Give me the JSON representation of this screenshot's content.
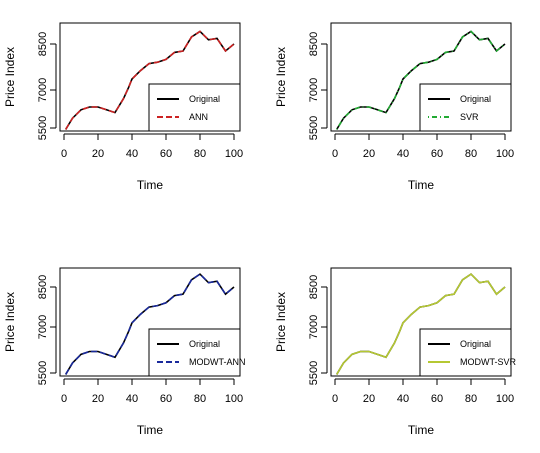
{
  "chart_data": [
    {
      "type": "line",
      "xlabel": "Time",
      "ylabel": "Price Index",
      "xlim": [
        0,
        100
      ],
      "ylim": [
        5500,
        8500
      ],
      "xticks": [
        "0",
        "20",
        "40",
        "60",
        "80",
        "100"
      ],
      "yticks": [
        "5500",
        "7000",
        "8500"
      ],
      "legend_position": "bottom-right",
      "grid": false,
      "series": [
        {
          "name": "Original",
          "color": "#000000",
          "style": "solid"
        },
        {
          "name": "ANN",
          "color": "#cc2222",
          "style": "dashed"
        }
      ],
      "x": [
        1,
        5,
        10,
        15,
        20,
        25,
        30,
        35,
        38,
        40,
        45,
        50,
        55,
        60,
        65,
        70,
        75,
        80,
        85,
        90,
        95,
        100
      ],
      "values": [
        5450,
        5850,
        6150,
        6250,
        6250,
        6150,
        6050,
        6550,
        6950,
        7250,
        7550,
        7800,
        7850,
        7950,
        8200,
        8250,
        8750,
        8950,
        8650,
        8700,
        8250,
        8500
      ]
    },
    {
      "type": "line",
      "xlabel": "Time",
      "ylabel": "Price Index",
      "xlim": [
        0,
        100
      ],
      "ylim": [
        5500,
        8500
      ],
      "xticks": [
        "0",
        "20",
        "40",
        "60",
        "80",
        "100"
      ],
      "yticks": [
        "5500",
        "7000",
        "8500"
      ],
      "legend_position": "bottom-right",
      "grid": false,
      "series": [
        {
          "name": "Original",
          "color": "#000000",
          "style": "solid"
        },
        {
          "name": "SVR",
          "color": "#22aa33",
          "style": "dotdash"
        }
      ],
      "x": [
        1,
        5,
        10,
        15,
        20,
        25,
        30,
        35,
        38,
        40,
        45,
        50,
        55,
        60,
        65,
        70,
        75,
        80,
        85,
        90,
        95,
        100
      ],
      "values": [
        5450,
        5850,
        6150,
        6250,
        6250,
        6150,
        6050,
        6550,
        6950,
        7250,
        7550,
        7800,
        7850,
        7950,
        8200,
        8250,
        8750,
        8950,
        8650,
        8700,
        8250,
        8500
      ]
    },
    {
      "type": "line",
      "xlabel": "Time",
      "ylabel": "Price Index",
      "xlim": [
        0,
        100
      ],
      "ylim": [
        5500,
        8500
      ],
      "xticks": [
        "0",
        "20",
        "40",
        "60",
        "80",
        "100"
      ],
      "yticks": [
        "5500",
        "7000",
        "8500"
      ],
      "legend_position": "bottom-right",
      "grid": false,
      "series": [
        {
          "name": "Original",
          "color": "#000000",
          "style": "solid"
        },
        {
          "name": "MODWT-ANN",
          "color": "#1a2a9c",
          "style": "dashed"
        }
      ],
      "x": [
        1,
        5,
        10,
        15,
        20,
        25,
        30,
        35,
        38,
        40,
        45,
        50,
        55,
        60,
        65,
        70,
        75,
        80,
        85,
        90,
        95,
        100
      ],
      "values": [
        5450,
        5850,
        6150,
        6250,
        6250,
        6150,
        6050,
        6550,
        6950,
        7250,
        7550,
        7800,
        7850,
        7950,
        8200,
        8250,
        8750,
        8950,
        8650,
        8700,
        8250,
        8500
      ]
    },
    {
      "type": "line",
      "xlabel": "Time",
      "ylabel": "Price Index",
      "xlim": [
        0,
        100
      ],
      "ylim": [
        5500,
        8500
      ],
      "xticks": [
        "0",
        "20",
        "40",
        "60",
        "80",
        "100"
      ],
      "yticks": [
        "5500",
        "7000",
        "8500"
      ],
      "legend_position": "bottom-right",
      "grid": false,
      "series": [
        {
          "name": "Original",
          "color": "#000000",
          "style": "solid"
        },
        {
          "name": "MODWT-SVR",
          "color": "#b5c832",
          "style": "solid"
        }
      ],
      "x": [
        1,
        5,
        10,
        15,
        20,
        25,
        30,
        35,
        38,
        40,
        45,
        50,
        55,
        60,
        65,
        70,
        75,
        80,
        85,
        90,
        95,
        100
      ],
      "values": [
        5450,
        5850,
        6150,
        6250,
        6250,
        6150,
        6050,
        6550,
        6950,
        7250,
        7550,
        7800,
        7850,
        7950,
        8200,
        8250,
        8750,
        8950,
        8650,
        8700,
        8250,
        8500
      ]
    }
  ]
}
